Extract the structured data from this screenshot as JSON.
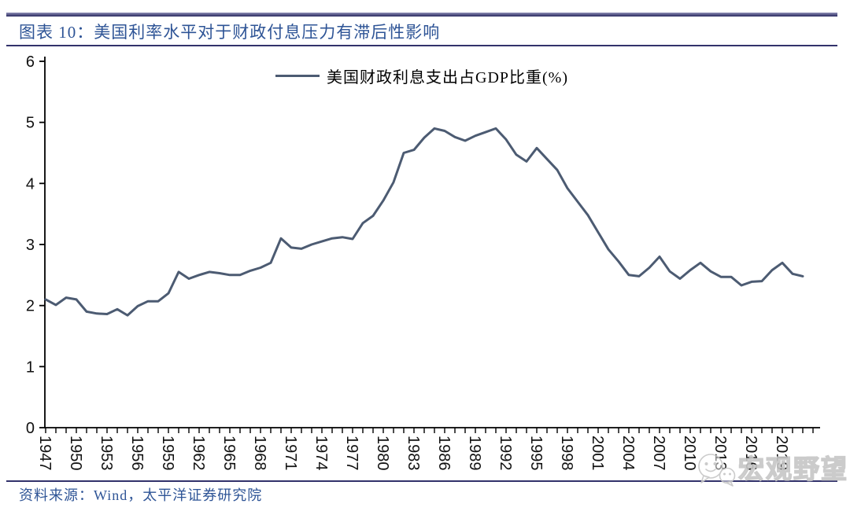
{
  "header": {
    "title": "图表 10：美国利率水平对于财政付息压力有滞后性影响"
  },
  "legend": {
    "label": "美国财政利息支出占GDP比重(%)"
  },
  "footer": {
    "source": "资料来源：Wind，太平洋证券研究院"
  },
  "watermark": {
    "text": "宏观野望"
  },
  "colors": {
    "rule_accent": "#32326B",
    "title_text": "#2E5496",
    "line": "#4C5B72",
    "axis": "#000000",
    "tick_label": "#111111",
    "watermark": "#C6C6C6"
  },
  "chart_data": {
    "type": "line",
    "title": "",
    "series_name": "美国财政利息支出占GDP比重(%)",
    "xlabel": "",
    "ylabel": "",
    "ylim": [
      0,
      6
    ],
    "y_ticks": [
      0,
      1,
      2,
      3,
      4,
      5,
      6
    ],
    "grid": false,
    "legend_position": "top-center",
    "x_minor_tick_step_years": 1,
    "x_axis_last_tick_year": 2022,
    "x_tick_label_years": [
      1947,
      1950,
      1953,
      1956,
      1959,
      1962,
      1965,
      1968,
      1971,
      1974,
      1977,
      1980,
      1983,
      1986,
      1989,
      1992,
      1995,
      1998,
      2001,
      2004,
      2007,
      2010,
      2013,
      2016,
      2019
    ],
    "years": [
      1947,
      1948,
      1949,
      1950,
      1951,
      1952,
      1953,
      1954,
      1955,
      1956,
      1957,
      1958,
      1959,
      1960,
      1961,
      1962,
      1963,
      1964,
      1965,
      1966,
      1967,
      1968,
      1969,
      1970,
      1971,
      1972,
      1973,
      1974,
      1975,
      1976,
      1977,
      1978,
      1979,
      1980,
      1981,
      1982,
      1983,
      1984,
      1985,
      1986,
      1987,
      1988,
      1989,
      1990,
      1991,
      1992,
      1993,
      1994,
      1995,
      1996,
      1997,
      1998,
      1999,
      2000,
      2001,
      2002,
      2003,
      2004,
      2005,
      2006,
      2007,
      2008,
      2009,
      2010,
      2011,
      2012,
      2013,
      2014,
      2015,
      2016,
      2017,
      2018,
      2019,
      2020,
      2021
    ],
    "values": [
      2.1,
      2.01,
      2.13,
      2.1,
      1.9,
      1.87,
      1.86,
      1.94,
      1.84,
      1.99,
      2.07,
      2.07,
      2.2,
      2.55,
      2.44,
      2.5,
      2.55,
      2.53,
      2.5,
      2.5,
      2.57,
      2.62,
      2.7,
      3.1,
      2.95,
      2.93,
      3.0,
      3.05,
      3.1,
      3.12,
      3.09,
      3.35,
      3.47,
      3.72,
      4.02,
      4.5,
      4.55,
      4.75,
      4.9,
      4.86,
      4.76,
      4.7,
      4.78,
      4.84,
      4.9,
      4.72,
      4.47,
      4.36,
      4.58,
      4.4,
      4.22,
      3.92,
      3.7,
      3.48,
      3.2,
      2.92,
      2.72,
      2.5,
      2.48,
      2.62,
      2.8,
      2.56,
      2.44,
      2.58,
      2.7,
      2.56,
      2.47,
      2.47,
      2.33,
      2.39,
      2.4,
      2.58,
      2.7,
      2.52,
      2.48
    ]
  }
}
